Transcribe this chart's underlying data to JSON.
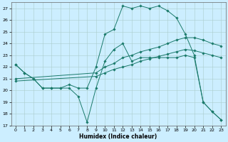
{
  "xlabel": "Humidex (Indice chaleur)",
  "bg_color": "#cceeff",
  "grid_color": "#aacccc",
  "line_color": "#1a7a6a",
  "xlim": [
    -0.5,
    23.5
  ],
  "ylim": [
    17,
    27.5
  ],
  "xticks": [
    0,
    1,
    2,
    3,
    4,
    5,
    6,
    7,
    8,
    9,
    10,
    11,
    12,
    13,
    14,
    15,
    16,
    17,
    18,
    19,
    20,
    21,
    22,
    23
  ],
  "yticks": [
    17,
    18,
    19,
    20,
    21,
    22,
    23,
    24,
    25,
    26,
    27
  ],
  "series_zigzag_x": [
    0,
    1,
    2,
    3,
    4,
    5,
    6,
    7,
    8,
    9,
    10,
    11,
    12,
    13,
    14,
    15,
    16,
    17,
    18,
    19,
    20,
    21,
    22,
    23
  ],
  "series_zigzag_y": [
    22.2,
    21.5,
    21.0,
    20.2,
    20.2,
    20.2,
    20.2,
    19.5,
    17.3,
    20.2,
    22.5,
    23.5,
    24.0,
    22.5,
    22.8,
    22.8,
    22.8,
    22.8,
    22.8,
    23.0,
    22.8,
    19.0,
    18.2,
    17.5
  ],
  "series_top_x": [
    0,
    1,
    2,
    3,
    4,
    5,
    6,
    7,
    8,
    9,
    10,
    11,
    12,
    13,
    14,
    15,
    16,
    17,
    18,
    19,
    20,
    21,
    22,
    23
  ],
  "series_top_y": [
    22.2,
    21.5,
    21.0,
    20.2,
    20.2,
    20.2,
    20.5,
    20.2,
    20.2,
    22.0,
    24.8,
    25.2,
    27.2,
    27.0,
    27.2,
    27.0,
    27.2,
    26.8,
    26.2,
    24.8,
    23.0,
    19.0,
    18.2,
    17.5
  ],
  "series_line1_x": [
    0,
    9,
    10,
    11,
    12,
    13,
    14,
    15,
    16,
    17,
    18,
    19,
    20,
    21,
    22,
    23
  ],
  "series_line1_y": [
    21.0,
    21.5,
    22.0,
    22.3,
    22.8,
    23.0,
    23.3,
    23.5,
    23.7,
    24.0,
    24.3,
    24.5,
    24.5,
    24.3,
    24.0,
    23.8
  ],
  "series_line2_x": [
    0,
    9,
    10,
    11,
    12,
    13,
    14,
    15,
    16,
    17,
    18,
    19,
    20,
    21,
    22,
    23
  ],
  "series_line2_y": [
    20.8,
    21.2,
    21.5,
    21.8,
    22.0,
    22.2,
    22.5,
    22.7,
    22.9,
    23.1,
    23.3,
    23.5,
    23.4,
    23.2,
    23.0,
    22.8
  ]
}
